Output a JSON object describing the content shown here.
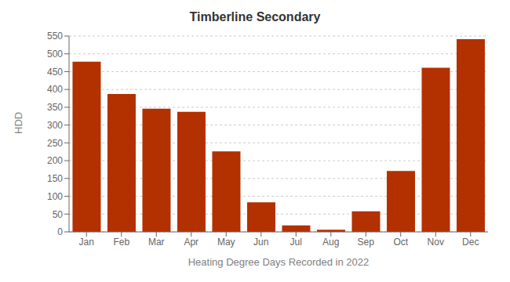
{
  "chart_data": {
    "type": "bar",
    "title": "Timberline Secondary",
    "xlabel": "Heating Degree Days Recorded in 2022",
    "ylabel": "HDD",
    "categories": [
      "Jan",
      "Feb",
      "Mar",
      "Apr",
      "May",
      "Jun",
      "Jul",
      "Aug",
      "Sep",
      "Oct",
      "Nov",
      "Dec"
    ],
    "values": [
      478,
      387,
      346,
      337,
      226,
      83,
      18,
      6,
      58,
      171,
      461,
      541
    ],
    "color": "#b33000",
    "ylim": [
      0,
      550
    ],
    "yticks": [
      0,
      50,
      100,
      150,
      200,
      250,
      300,
      350,
      400,
      450,
      500,
      550
    ],
    "grid": true
  }
}
